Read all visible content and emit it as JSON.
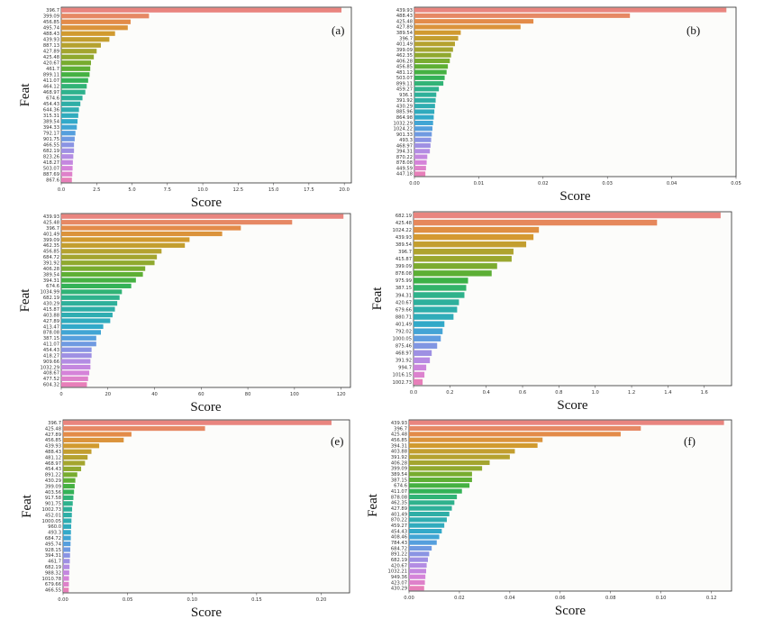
{
  "colors": {
    "palette": [
      "#e9857f",
      "#e48a4a",
      "#d39a2f",
      "#b8a12f",
      "#97a82f",
      "#67ae2f",
      "#35b24b",
      "#2fb387",
      "#2eafa0",
      "#2fadb6",
      "#33a8cd",
      "#5b9ee0",
      "#8f93e3",
      "#b68be3",
      "#d683d9",
      "#e77fb9"
    ]
  },
  "chart_data": [
    {
      "type": "bar",
      "orientation": "horizontal",
      "panel_label": "(a)",
      "xlabel": "Score",
      "ylabel": "Feat",
      "xlim": [
        0,
        20.5
      ],
      "xticks": [
        "0.0",
        "2.5",
        "5.0",
        "7.5",
        "10.0",
        "12.5",
        "15.0",
        "17.5",
        "20.0"
      ],
      "xtick_values": [
        0,
        2.5,
        5,
        7.5,
        10,
        12.5,
        15,
        17.5,
        20
      ],
      "categories": [
        "396.7",
        "399.09",
        "456.85",
        "495.74",
        "488.43",
        "439.93",
        "887.13",
        "427.89",
        "425.48",
        "420.67",
        "461.7",
        "899.11",
        "411.07",
        "464.12",
        "468.97",
        "674.6",
        "454.43",
        "644.36",
        "315.31",
        "389.54",
        "394.33",
        "792.17",
        "901.75",
        "466.55",
        "682.19",
        "823.26",
        "418.27",
        "503.07",
        "887.69",
        "867.6"
      ],
      "values": [
        19.8,
        6.2,
        4.9,
        4.7,
        3.8,
        3.4,
        2.8,
        2.5,
        2.3,
        2.1,
        2.05,
        2.0,
        1.9,
        1.8,
        1.7,
        1.5,
        1.35,
        1.25,
        1.2,
        1.15,
        1.1,
        1.0,
        0.95,
        0.9,
        0.9,
        0.85,
        0.82,
        0.8,
        0.78,
        0.75
      ]
    },
    {
      "type": "bar",
      "orientation": "horizontal",
      "panel_label": "(b)",
      "xlabel": "Score",
      "ylabel": "",
      "xlim": [
        0,
        0.05
      ],
      "xticks": [
        "0.00",
        "0.01",
        "0.02",
        "0.03",
        "0.04",
        "0.05"
      ],
      "xtick_values": [
        0,
        0.01,
        0.02,
        0.03,
        0.04,
        0.05
      ],
      "categories": [
        "439.93",
        "488.43",
        "425.48",
        "427.89",
        "389.54",
        "396.7",
        "401.49",
        "399.09",
        "462.35",
        "406.28",
        "456.85",
        "481.12",
        "503.07",
        "899.11",
        "459.27",
        "936.1",
        "391.92",
        "430.29",
        "885.96",
        "864.98",
        "1032.29",
        "1024.22",
        "901.33",
        "493.3",
        "468.97",
        "394.31",
        "870.22",
        "878.08",
        "449.59",
        "447.18"
      ],
      "values": [
        0.0485,
        0.0335,
        0.0185,
        0.0165,
        0.0072,
        0.0068,
        0.0063,
        0.006,
        0.0057,
        0.0055,
        0.0052,
        0.005,
        0.0047,
        0.0045,
        0.0038,
        0.0034,
        0.0033,
        0.0032,
        0.0031,
        0.003,
        0.0029,
        0.0028,
        0.0027,
        0.0026,
        0.0025,
        0.0024,
        0.002,
        0.0019,
        0.0018,
        0.0017
      ]
    },
    {
      "type": "bar",
      "orientation": "horizontal",
      "panel_label": "",
      "xlabel": "Score",
      "ylabel": "Feat",
      "xlim": [
        0,
        124
      ],
      "xticks": [
        "0",
        "20",
        "40",
        "60",
        "80",
        "100",
        "120"
      ],
      "xtick_values": [
        0,
        20,
        40,
        60,
        80,
        100,
        120
      ],
      "categories": [
        "439.93",
        "425.48",
        "396.7",
        "401.49",
        "399.09",
        "462.35",
        "456.85",
        "684.72",
        "391.92",
        "406.28",
        "389.54",
        "394.31",
        "674.6",
        "1034.99",
        "682.19",
        "430.29",
        "415.87",
        "403.88",
        "427.89",
        "413.47",
        "878.08",
        "387.15",
        "411.07",
        "454.43",
        "418.27",
        "909.66",
        "1032.29",
        "408.67",
        "477.52",
        "604.32"
      ],
      "values": [
        121,
        99,
        77,
        69,
        55,
        53,
        43,
        41,
        40,
        36,
        35,
        32,
        30,
        26,
        25,
        24,
        23,
        22,
        21,
        18,
        17,
        15,
        15,
        13,
        13,
        12.5,
        12.5,
        12,
        11.5,
        11
      ]
    },
    {
      "type": "bar",
      "orientation": "horizontal",
      "panel_label": "",
      "xlabel": "Score",
      "ylabel": "Feat",
      "xlim": [
        0,
        1.75
      ],
      "xticks": [
        "0.0",
        "0.2",
        "0.4",
        "0.6",
        "0.8",
        "1.0",
        "1.2",
        "1.4",
        "1.6"
      ],
      "xtick_values": [
        0,
        0.2,
        0.4,
        0.6,
        0.8,
        1.0,
        1.2,
        1.4,
        1.6
      ],
      "categories": [
        "682.19",
        "425.48",
        "1024.22",
        "439.93",
        "389.54",
        "396.7",
        "415.87",
        "399.09",
        "878.08",
        "975.99",
        "387.15",
        "394.31",
        "420.67",
        "679.66",
        "880.71",
        "401.49",
        "792.02",
        "1000.05",
        "875.46",
        "468.97",
        "391.92",
        "994.7",
        "1016.15",
        "1002.73"
      ],
      "values": [
        1.69,
        1.34,
        0.69,
        0.66,
        0.62,
        0.55,
        0.54,
        0.46,
        0.43,
        0.3,
        0.29,
        0.28,
        0.25,
        0.24,
        0.22,
        0.17,
        0.16,
        0.15,
        0.13,
        0.1,
        0.09,
        0.07,
        0.06,
        0.05
      ]
    },
    {
      "type": "bar",
      "orientation": "horizontal",
      "panel_label": "(e)",
      "xlabel": "Score",
      "ylabel": "Feat",
      "xlim": [
        0,
        0.222
      ],
      "xticks": [
        "0.00",
        "0.05",
        "0.10",
        "0.15",
        "0.20"
      ],
      "xtick_values": [
        0,
        0.05,
        0.1,
        0.15,
        0.2
      ],
      "categories": [
        "396.7",
        "425.48",
        "427.89",
        "456.85",
        "439.93",
        "488.43",
        "481.12",
        "468.97",
        "454.43",
        "891.22",
        "430.29",
        "399.09",
        "403.56",
        "917.58",
        "901.75",
        "1002.73",
        "452.01",
        "1000.05",
        "960.0",
        "493.3",
        "684.72",
        "495.74",
        "928.15",
        "394.31",
        "461.7",
        "682.19",
        "988.32",
        "1010.78",
        "679.66",
        "466.55"
      ],
      "values": [
        0.208,
        0.11,
        0.053,
        0.047,
        0.028,
        0.022,
        0.019,
        0.017,
        0.014,
        0.011,
        0.0095,
        0.009,
        0.0085,
        0.008,
        0.0075,
        0.007,
        0.0068,
        0.0065,
        0.0063,
        0.0061,
        0.006,
        0.0058,
        0.0056,
        0.0054,
        0.0052,
        0.005,
        0.0048,
        0.0046,
        0.0045,
        0.0044
      ]
    },
    {
      "type": "bar",
      "orientation": "horizontal",
      "panel_label": "(f)",
      "xlabel": "Score",
      "ylabel": "Feat",
      "xlim": [
        0,
        0.128
      ],
      "xticks": [
        "0.00",
        "0.02",
        "0.04",
        "0.06",
        "0.08",
        "0.10",
        "0.12"
      ],
      "xtick_values": [
        0,
        0.02,
        0.04,
        0.06,
        0.08,
        0.1,
        0.12
      ],
      "categories": [
        "439.93",
        "396.7",
        "425.48",
        "456.85",
        "394.31",
        "403.88",
        "391.92",
        "406.28",
        "399.09",
        "389.54",
        "387.15",
        "674.6",
        "411.07",
        "878.08",
        "462.35",
        "427.89",
        "401.49",
        "870.22",
        "459.27",
        "454.43",
        "408.46",
        "784.43",
        "684.72",
        "891.22",
        "682.19",
        "420.67",
        "1032.21",
        "949.36",
        "423.07",
        "430.29"
      ],
      "values": [
        0.125,
        0.092,
        0.084,
        0.053,
        0.051,
        0.042,
        0.04,
        0.032,
        0.029,
        0.025,
        0.025,
        0.024,
        0.021,
        0.019,
        0.018,
        0.017,
        0.016,
        0.015,
        0.014,
        0.013,
        0.012,
        0.011,
        0.009,
        0.008,
        0.0075,
        0.007,
        0.0068,
        0.0065,
        0.0063,
        0.006
      ]
    }
  ]
}
